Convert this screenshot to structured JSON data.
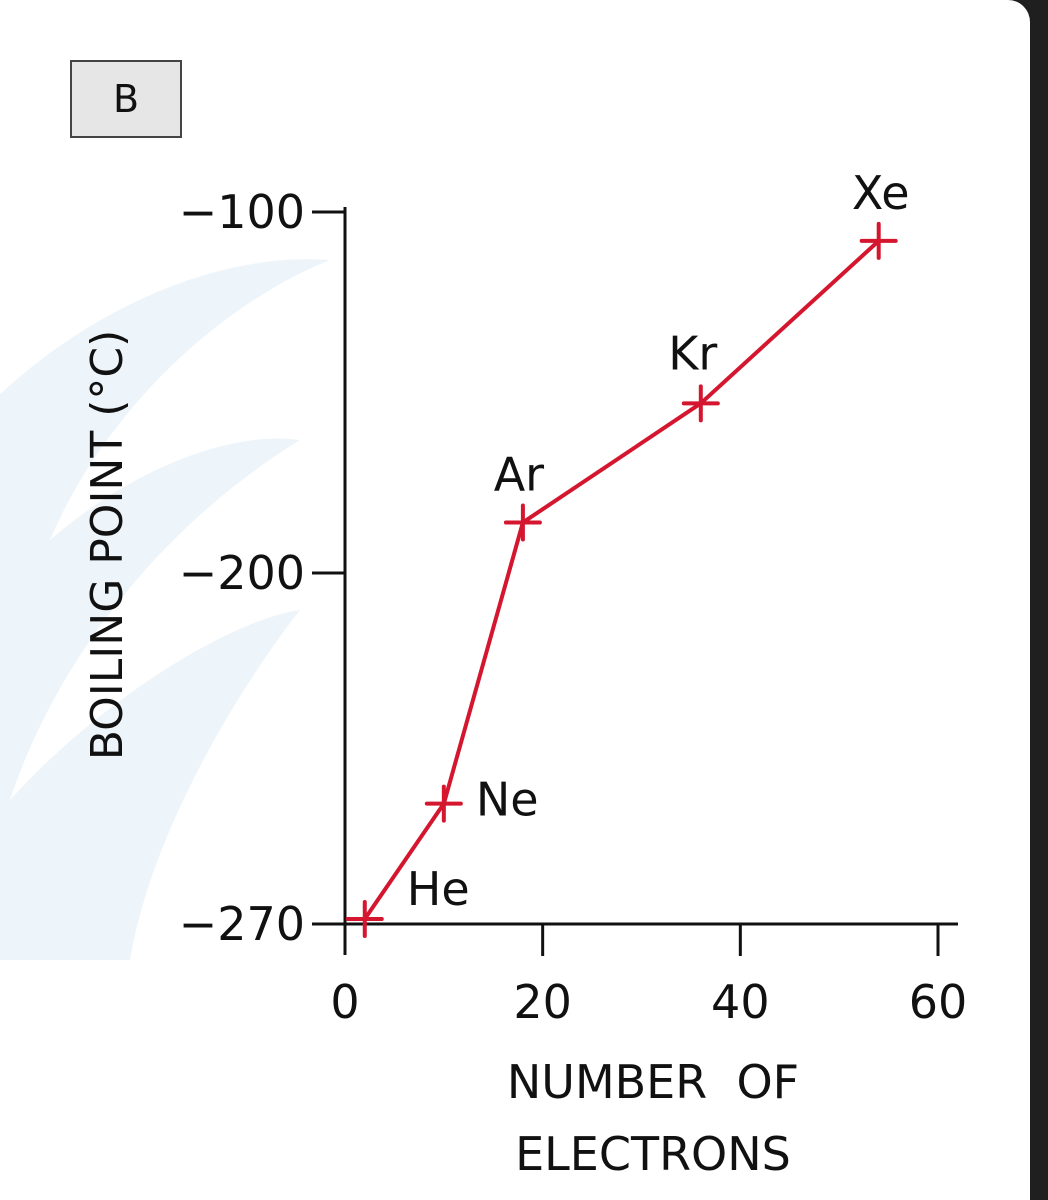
{
  "panel_label": "B",
  "colors": {
    "series": "#d4162f",
    "axis": "#111111",
    "panel_background": "#ffffff",
    "outer_background": "#1f1f1f",
    "watermark": "#eef5fa"
  },
  "chart_data": {
    "type": "line",
    "xlabel_lines": [
      "NUMBER  OF",
      "ELECTRONS"
    ],
    "ylabel": "BOILING  POINT (°C)",
    "xlim": [
      0,
      60
    ],
    "x_ticks": [
      0,
      20,
      40,
      60
    ],
    "x_tick_labels": [
      "0",
      "20",
      "40",
      "60"
    ],
    "y_ticks": [
      -100,
      -200,
      -270
    ],
    "y_tick_labels": [
      "−100",
      "−200",
      "−270"
    ],
    "grid": false,
    "legend": "none",
    "marker": "cross",
    "series": [
      {
        "points": [
          {
            "label": "He",
            "x": 2,
            "y": -269
          },
          {
            "label": "Ne",
            "x": 10,
            "y": -246
          },
          {
            "label": "Ar",
            "x": 18,
            "y": -186
          },
          {
            "label": "Kr",
            "x": 36,
            "y": -153
          },
          {
            "label": "Xe",
            "x": 54,
            "y": -108
          }
        ]
      }
    ]
  }
}
